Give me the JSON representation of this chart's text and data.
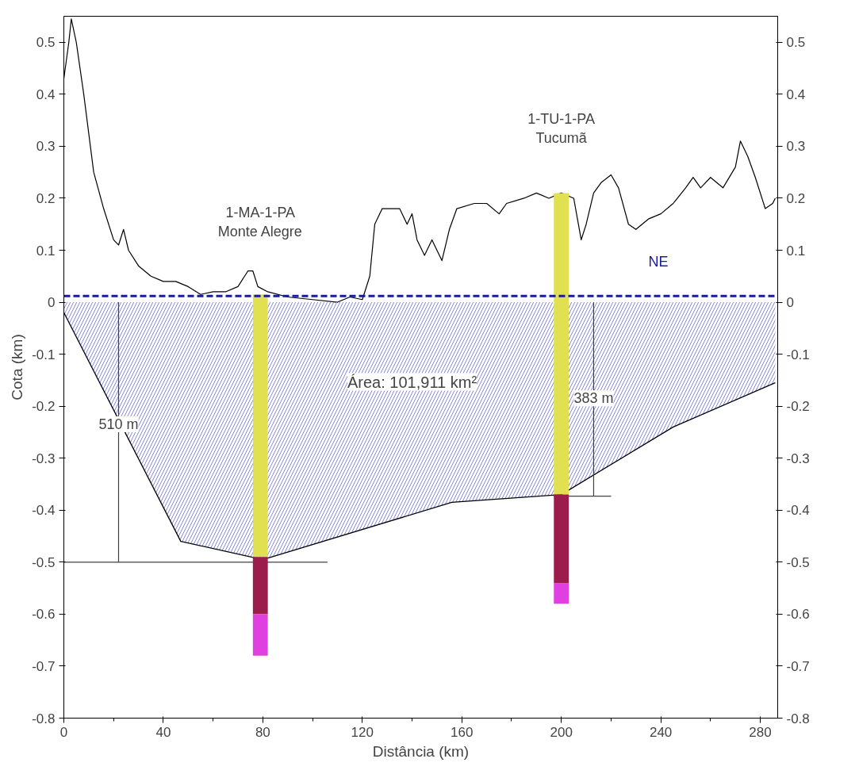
{
  "chart_data": {
    "type": "line",
    "xlabel": "Distância (km)",
    "ylabel": "Cota (km)",
    "xlim": [
      0,
      287
    ],
    "xticks": [
      0,
      40,
      80,
      120,
      160,
      200,
      240,
      280
    ],
    "ylim": [
      -0.8,
      0.55
    ],
    "yticks": [
      -0.8,
      -0.7,
      -0.6,
      -0.5,
      -0.4,
      -0.3,
      -0.2,
      -0.1,
      0,
      0.1,
      0.2,
      0.3,
      0.4,
      0.5
    ],
    "y2lim": [
      -0.8,
      0.55
    ],
    "y2ticks": [
      -0.8,
      -0.7,
      -0.6,
      -0.5,
      -0.4,
      -0.3,
      -0.2,
      -0.1,
      0,
      0.1,
      0.2,
      0.3,
      0.4,
      0.5
    ],
    "grid": false,
    "series": [
      {
        "color": "#000000",
        "x": [
          0,
          2,
          3,
          5,
          8,
          12,
          16,
          20,
          22,
          24,
          26,
          30,
          35,
          40,
          45,
          50,
          55,
          60,
          65,
          70,
          74,
          76,
          78,
          82,
          90,
          100,
          110,
          115,
          120,
          123,
          125,
          128,
          135,
          138,
          140,
          142,
          145,
          148,
          150,
          152,
          155,
          158,
          165,
          170,
          175,
          178,
          185,
          190,
          195,
          200,
          205,
          208,
          210,
          213,
          216,
          220,
          223,
          227,
          230,
          235,
          240,
          245,
          250,
          253,
          256,
          260,
          265,
          270,
          272,
          275,
          278,
          282,
          285,
          286
        ],
        "values": [
          0.43,
          0.5,
          0.545,
          0.5,
          0.4,
          0.25,
          0.18,
          0.12,
          0.11,
          0.14,
          0.1,
          0.07,
          0.05,
          0.04,
          0.04,
          0.03,
          0.015,
          0.02,
          0.02,
          0.03,
          0.06,
          0.06,
          0.03,
          0.02,
          0.01,
          0.005,
          0.0,
          0.01,
          0.005,
          0.05,
          0.15,
          0.18,
          0.18,
          0.15,
          0.17,
          0.12,
          0.09,
          0.12,
          0.1,
          0.08,
          0.14,
          0.18,
          0.19,
          0.19,
          0.17,
          0.19,
          0.2,
          0.21,
          0.2,
          0.21,
          0.2,
          0.12,
          0.15,
          0.21,
          0.23,
          0.245,
          0.22,
          0.15,
          0.14,
          0.16,
          0.17,
          0.19,
          0.22,
          0.24,
          0.22,
          0.24,
          0.22,
          0.26,
          0.31,
          0.28,
          0.24,
          0.18,
          0.19,
          0.2
        ]
      },
      {
        "type": "area",
        "color": "#8888dd",
        "x": [
          0,
          47,
          80,
          156,
          200,
          245,
          286
        ],
        "values": [
          -0.02,
          -0.46,
          -0.495,
          -0.385,
          -0.37,
          -0.24,
          -0.155
        ]
      },
      {
        "type": "line",
        "color": "#404040",
        "x": [
          22,
          22
        ],
        "values": [
          0,
          -0.5
        ]
      },
      {
        "type": "line",
        "color": "#404040",
        "x": [
          0,
          106
        ],
        "values": [
          -0.5,
          -0.5
        ]
      },
      {
        "type": "line",
        "color": "#404040",
        "x": [
          213,
          213
        ],
        "values": [
          0,
          -0.373
        ]
      },
      {
        "type": "line",
        "color": "#404040",
        "x": [
          197,
          220
        ],
        "values": [
          -0.373,
          -0.373
        ]
      },
      {
        "type": "bar",
        "color": "#e0e050",
        "x": [
          79,
          200
        ],
        "base": [
          -0.49,
          -0.37
        ],
        "values": [
          0.505,
          0.58
        ]
      },
      {
        "type": "bar",
        "color": "#9c1c4c",
        "x": [
          79,
          200
        ],
        "base": [
          -0.6,
          -0.54
        ],
        "values": [
          0.11,
          0.17
        ]
      },
      {
        "type": "bar",
        "color": "#e040e0",
        "x": [
          79,
          200
        ],
        "base": [
          -0.68,
          -0.58
        ],
        "values": [
          0.08,
          0.04
        ]
      }
    ],
    "ref_lines": [
      {
        "axis": "y",
        "value": 0.012,
        "label": "NE",
        "color": "#1a1aa0",
        "line_style": "dashed"
      }
    ],
    "annotations": [
      "1-MA-1-PA\nMonte Alegre",
      "1-TU-1-PA\nTucumã",
      "Área: 101,911 km²",
      {
        "text": "510 m",
        "x": 22,
        "y": -0.25
      },
      {
        "text": "383 m",
        "x": 213,
        "y": -0.2
      }
    ]
  }
}
